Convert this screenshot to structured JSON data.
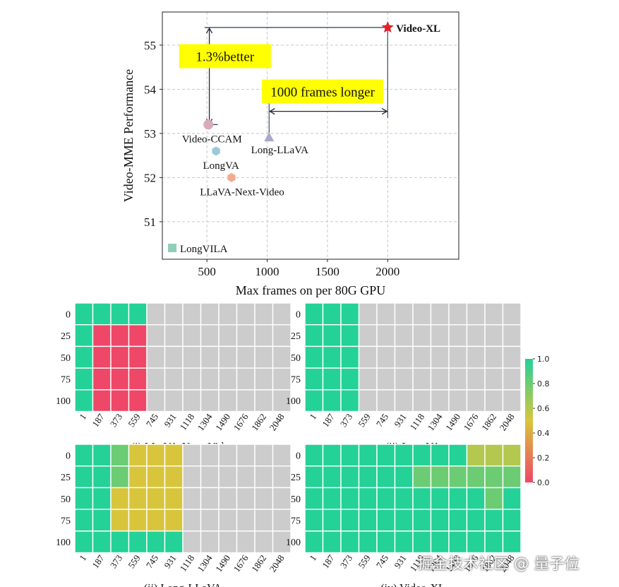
{
  "chart_data": [
    {
      "type": "scatter",
      "title": "",
      "xlabel": "Max frames on per 80G GPU",
      "ylabel": "Video-MME Performance",
      "xlim": [
        130,
        2590
      ],
      "ylim": [
        50.15,
        55.75
      ],
      "xticks": [
        500,
        1000,
        1500,
        2000
      ],
      "yticks": [
        51,
        52,
        53,
        54,
        55
      ],
      "grid": true,
      "points": [
        {
          "name": "Video-XL",
          "x": 2000,
          "y": 55.4,
          "color": "#e3202a",
          "marker": "star"
        },
        {
          "name": "Video-CCAM",
          "x": 512,
          "y": 53.2,
          "color": "#d9aab9",
          "marker": "circle"
        },
        {
          "name": "Long-LLaVA",
          "x": 1016,
          "y": 52.9,
          "color": "#a8a8c8",
          "marker": "triangle"
        },
        {
          "name": "LongVA",
          "x": 576,
          "y": 52.6,
          "color": "#9cc8dc",
          "marker": "hexagon"
        },
        {
          "name": "LLaVA-Next-Video",
          "x": 704,
          "y": 52.0,
          "color": "#f2ab8f",
          "marker": "hexagon"
        }
      ],
      "legend": {
        "label": "LongVILA",
        "color": "#8fcfb7",
        "position": "bottom-left"
      },
      "annotations": [
        {
          "text": "1.3%better",
          "x": 650,
          "y": 54.75,
          "background": "#ffff00"
        },
        {
          "text": "1000 frames longer",
          "x": 1460,
          "y": 53.95,
          "background": "#ffff00"
        }
      ]
    },
    {
      "type": "heatmap",
      "colorbar": {
        "min": 0.0,
        "max": 1.0,
        "ticks": [
          "0.0",
          "0.2",
          "0.4",
          "0.6",
          "0.8",
          "1.0"
        ],
        "low_color": "#ee4768",
        "mid_color": "#d8c53c",
        "high_color": "#24d197"
      },
      "missing_color": "#cccccc",
      "x_ticks": [
        "1",
        "187",
        "373",
        "559",
        "745",
        "931",
        "1118",
        "1304",
        "1490",
        "1676",
        "1862",
        "2048"
      ],
      "y_ticks": [
        "0",
        "25",
        "50",
        "75",
        "100"
      ],
      "panels": [
        {
          "title": "(i) LLaVA-Next-Video",
          "values": [
            [
              1,
              1,
              1,
              1,
              null,
              null,
              null,
              null,
              null,
              null,
              null,
              null
            ],
            [
              1,
              0,
              0,
              0,
              null,
              null,
              null,
              null,
              null,
              null,
              null,
              null
            ],
            [
              1,
              0,
              0,
              0,
              null,
              null,
              null,
              null,
              null,
              null,
              null,
              null
            ],
            [
              1,
              0,
              0,
              0,
              null,
              null,
              null,
              null,
              null,
              null,
              null,
              null
            ],
            [
              1,
              0,
              0,
              0,
              null,
              null,
              null,
              null,
              null,
              null,
              null,
              null
            ]
          ]
        },
        {
          "title": "(ii) LongVA",
          "values": [
            [
              1,
              1,
              1,
              null,
              null,
              null,
              null,
              null,
              null,
              null,
              null,
              null
            ],
            [
              1,
              1,
              1,
              null,
              null,
              null,
              null,
              null,
              null,
              null,
              null,
              null
            ],
            [
              1,
              1,
              1,
              null,
              null,
              null,
              null,
              null,
              null,
              null,
              null,
              null
            ],
            [
              1,
              1,
              1,
              null,
              null,
              null,
              null,
              null,
              null,
              null,
              null,
              null
            ],
            [
              1,
              1,
              1,
              null,
              null,
              null,
              null,
              null,
              null,
              null,
              null,
              null
            ]
          ]
        },
        {
          "title": "(ii) Long-LLaVA",
          "values": [
            [
              1,
              1,
              0.8,
              0.5,
              0.5,
              0.5,
              null,
              null,
              null,
              null,
              null,
              null
            ],
            [
              1,
              1,
              0.8,
              0.5,
              0.5,
              0.5,
              null,
              null,
              null,
              null,
              null,
              null
            ],
            [
              1,
              1,
              0.5,
              0.5,
              0.5,
              0.5,
              null,
              null,
              null,
              null,
              null,
              null
            ],
            [
              1,
              1,
              0.5,
              0.5,
              0.5,
              0.5,
              null,
              null,
              null,
              null,
              null,
              null
            ],
            [
              1,
              1,
              1,
              1,
              1,
              1,
              null,
              null,
              null,
              null,
              null,
              null
            ]
          ]
        },
        {
          "title": "(iv) Video-XL",
          "values": [
            [
              1,
              1,
              1,
              1,
              1,
              1,
              1,
              1,
              1,
              0.6,
              0.6,
              0.6
            ],
            [
              1,
              1,
              1,
              1,
              1,
              1,
              0.8,
              0.8,
              0.8,
              0.8,
              0.8,
              0.8
            ],
            [
              1,
              1,
              1,
              1,
              1,
              1,
              1,
              1,
              1,
              1,
              0.8,
              1
            ],
            [
              1,
              1,
              1,
              1,
              1,
              1,
              1,
              1,
              1,
              1,
              1,
              1
            ],
            [
              1,
              1,
              1,
              1,
              1,
              1,
              1,
              1,
              1,
              1,
              1,
              1
            ]
          ]
        }
      ]
    }
  ],
  "watermark": "掘金技术社区 @ 量子位"
}
